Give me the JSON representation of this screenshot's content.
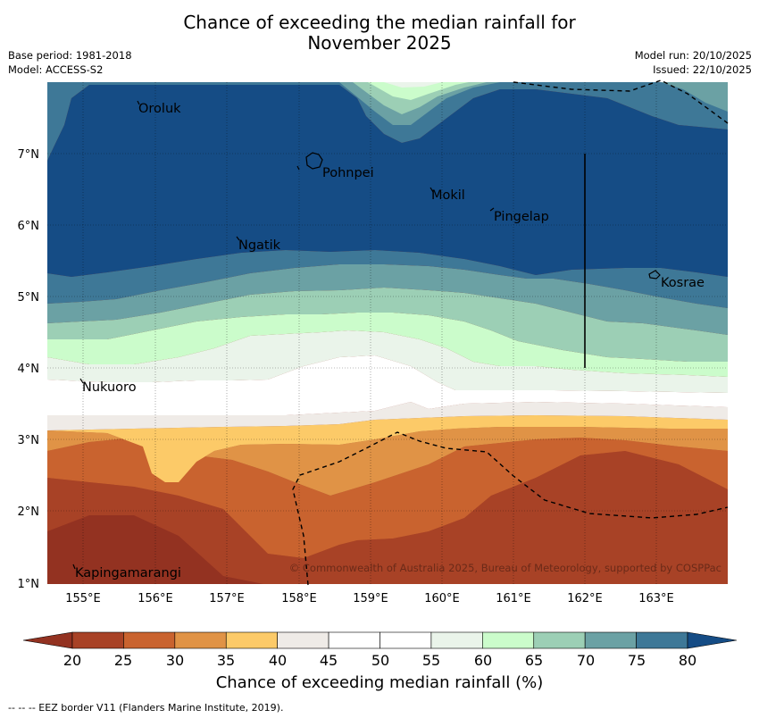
{
  "title_line1": "Chance of exceeding the median rainfall for",
  "title_line2": "November 2025",
  "base_period": "Base period: 1981-2018",
  "model": "Model: ACCESS-S2",
  "model_run": "Model run: 20/10/2025",
  "issued": "Issued: 22/10/2025",
  "lat_labels": [
    "7°N",
    "6°N",
    "5°N",
    "4°N",
    "3°N",
    "2°N",
    "1°N"
  ],
  "lon_labels": [
    "155°E",
    "156°E",
    "157°E",
    "158°E",
    "159°E",
    "160°E",
    "161°E",
    "162°E",
    "163°E"
  ],
  "places": [
    "Oroluk",
    "Pohnpei",
    "Mokil",
    "Pingelap",
    "Ngatik",
    "Kosrae",
    "Nukuoro",
    "Kapingamarangi"
  ],
  "copyright": "© Commonwealth of Australia 2025, Bureau of Meteorology, supported by COSPPac",
  "colorbar_ticks": [
    "20",
    "25",
    "30",
    "35",
    "40",
    "45",
    "50",
    "55",
    "60",
    "65",
    "70",
    "75",
    "80"
  ],
  "colorbar_colors": [
    "#a84226",
    "#c9632f",
    "#e09346",
    "#fcca68",
    "#efebe7",
    "#ffffff",
    "#ffffff",
    "#eaf4ea",
    "#cbfccb",
    "#9ccfb5",
    "#6ba1a4",
    "#3e7897"
  ],
  "colorbar_under": "#933221",
  "colorbar_over": "#154c85",
  "colorbar_title": "Chance of exceeding median rainfall (%)",
  "footnote": "-- -- -- EEZ border V11 (Flanders Marine Institute, 2019)."
}
